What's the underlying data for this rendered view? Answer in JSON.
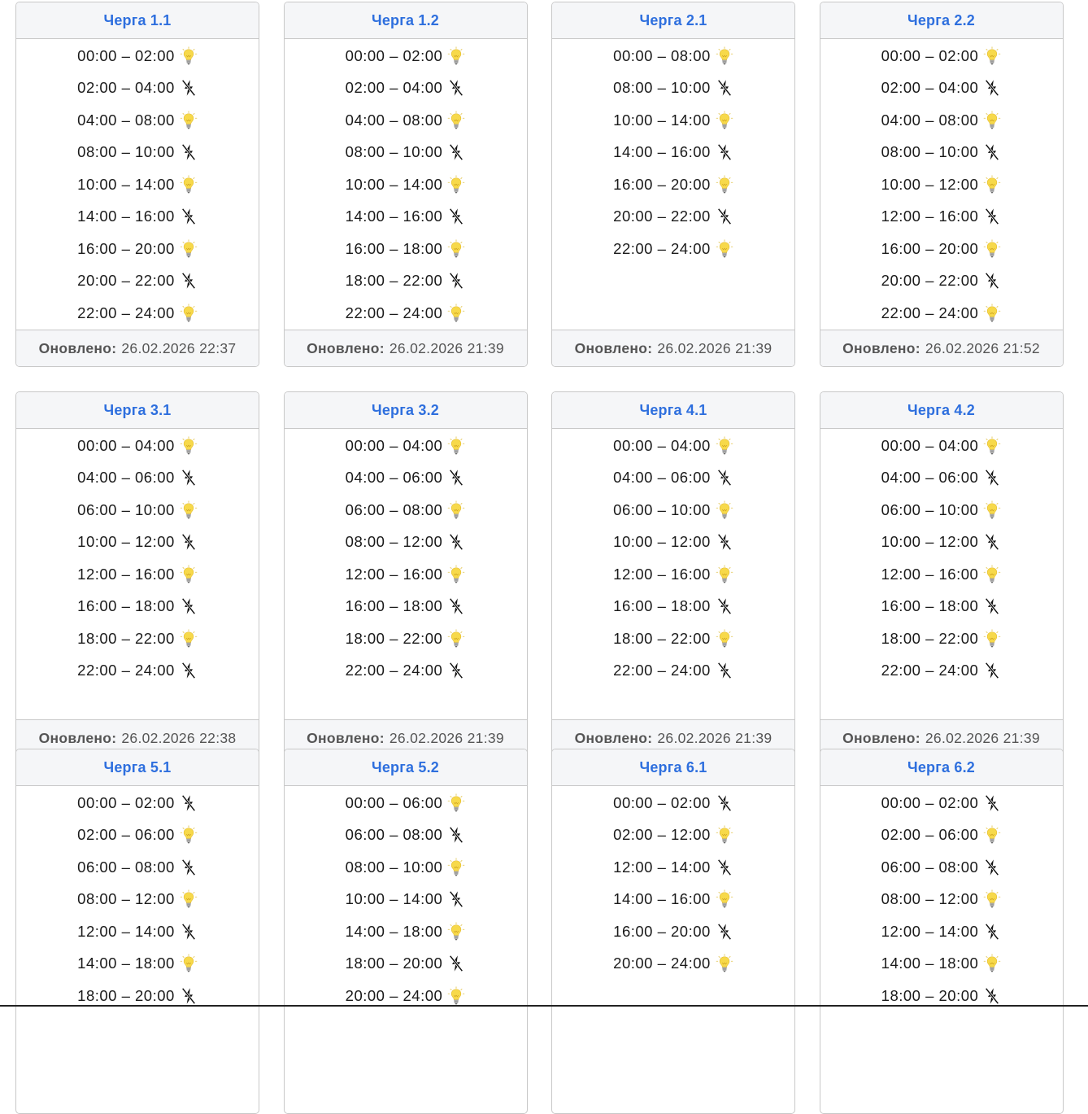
{
  "updated_label": "Оновлено:",
  "queues": [
    {
      "title": "Черга 1.1",
      "updated": "26.02.2026 22:37",
      "slots": [
        {
          "time": "00:00 – 02:00",
          "state": "on"
        },
        {
          "time": "02:00 – 04:00",
          "state": "off"
        },
        {
          "time": "04:00 – 08:00",
          "state": "on"
        },
        {
          "time": "08:00 – 10:00",
          "state": "off"
        },
        {
          "time": "10:00 – 14:00",
          "state": "on"
        },
        {
          "time": "14:00 – 16:00",
          "state": "off"
        },
        {
          "time": "16:00 – 20:00",
          "state": "on"
        },
        {
          "time": "20:00 – 22:00",
          "state": "off"
        },
        {
          "time": "22:00 – 24:00",
          "state": "on"
        }
      ]
    },
    {
      "title": "Черга 1.2",
      "updated": "26.02.2026 21:39",
      "slots": [
        {
          "time": "00:00 – 02:00",
          "state": "on"
        },
        {
          "time": "02:00 – 04:00",
          "state": "off"
        },
        {
          "time": "04:00 – 08:00",
          "state": "on"
        },
        {
          "time": "08:00 – 10:00",
          "state": "off"
        },
        {
          "time": "10:00 – 14:00",
          "state": "on"
        },
        {
          "time": "14:00 – 16:00",
          "state": "off"
        },
        {
          "time": "16:00 – 18:00",
          "state": "on"
        },
        {
          "time": "18:00 – 22:00",
          "state": "off"
        },
        {
          "time": "22:00 – 24:00",
          "state": "on"
        }
      ]
    },
    {
      "title": "Черга 2.1",
      "updated": "26.02.2026 21:39",
      "slots": [
        {
          "time": "00:00 – 08:00",
          "state": "on"
        },
        {
          "time": "08:00 – 10:00",
          "state": "off"
        },
        {
          "time": "10:00 – 14:00",
          "state": "on"
        },
        {
          "time": "14:00 – 16:00",
          "state": "off"
        },
        {
          "time": "16:00 – 20:00",
          "state": "on"
        },
        {
          "time": "20:00 – 22:00",
          "state": "off"
        },
        {
          "time": "22:00 – 24:00",
          "state": "on"
        }
      ]
    },
    {
      "title": "Черга 2.2",
      "updated": "26.02.2026 21:52",
      "slots": [
        {
          "time": "00:00 – 02:00",
          "state": "on"
        },
        {
          "time": "02:00 – 04:00",
          "state": "off"
        },
        {
          "time": "04:00 – 08:00",
          "state": "on"
        },
        {
          "time": "08:00 – 10:00",
          "state": "off"
        },
        {
          "time": "10:00 – 12:00",
          "state": "on"
        },
        {
          "time": "12:00 – 16:00",
          "state": "off"
        },
        {
          "time": "16:00 – 20:00",
          "state": "on"
        },
        {
          "time": "20:00 – 22:00",
          "state": "off"
        },
        {
          "time": "22:00 – 24:00",
          "state": "on"
        }
      ]
    },
    {
      "title": "Черга 3.1",
      "updated": "26.02.2026 22:38",
      "slots": [
        {
          "time": "00:00 – 04:00",
          "state": "on"
        },
        {
          "time": "04:00 – 06:00",
          "state": "off"
        },
        {
          "time": "06:00 – 10:00",
          "state": "on"
        },
        {
          "time": "10:00 – 12:00",
          "state": "off"
        },
        {
          "time": "12:00 – 16:00",
          "state": "on"
        },
        {
          "time": "16:00 – 18:00",
          "state": "off"
        },
        {
          "time": "18:00 – 22:00",
          "state": "on"
        },
        {
          "time": "22:00 – 24:00",
          "state": "off"
        }
      ]
    },
    {
      "title": "Черга 3.2",
      "updated": "26.02.2026 21:39",
      "slots": [
        {
          "time": "00:00 – 04:00",
          "state": "on"
        },
        {
          "time": "04:00 – 06:00",
          "state": "off"
        },
        {
          "time": "06:00 – 08:00",
          "state": "on"
        },
        {
          "time": "08:00 – 12:00",
          "state": "off"
        },
        {
          "time": "12:00 – 16:00",
          "state": "on"
        },
        {
          "time": "16:00 – 18:00",
          "state": "off"
        },
        {
          "time": "18:00 – 22:00",
          "state": "on"
        },
        {
          "time": "22:00 – 24:00",
          "state": "off"
        }
      ]
    },
    {
      "title": "Черга 4.1",
      "updated": "26.02.2026 21:39",
      "slots": [
        {
          "time": "00:00 – 04:00",
          "state": "on"
        },
        {
          "time": "04:00 – 06:00",
          "state": "off"
        },
        {
          "time": "06:00 – 10:00",
          "state": "on"
        },
        {
          "time": "10:00 – 12:00",
          "state": "off"
        },
        {
          "time": "12:00 – 16:00",
          "state": "on"
        },
        {
          "time": "16:00 – 18:00",
          "state": "off"
        },
        {
          "time": "18:00 – 22:00",
          "state": "on"
        },
        {
          "time": "22:00 – 24:00",
          "state": "off"
        }
      ]
    },
    {
      "title": "Черга 4.2",
      "updated": "26.02.2026 21:39",
      "slots": [
        {
          "time": "00:00 – 04:00",
          "state": "on"
        },
        {
          "time": "04:00 – 06:00",
          "state": "off"
        },
        {
          "time": "06:00 – 10:00",
          "state": "on"
        },
        {
          "time": "10:00 – 12:00",
          "state": "off"
        },
        {
          "time": "12:00 – 16:00",
          "state": "on"
        },
        {
          "time": "16:00 – 18:00",
          "state": "off"
        },
        {
          "time": "18:00 – 22:00",
          "state": "on"
        },
        {
          "time": "22:00 – 24:00",
          "state": "off"
        }
      ]
    },
    {
      "title": "Черга 5.1",
      "updated": "",
      "slots": [
        {
          "time": "00:00 – 02:00",
          "state": "off"
        },
        {
          "time": "02:00 – 06:00",
          "state": "on"
        },
        {
          "time": "06:00 – 08:00",
          "state": "off"
        },
        {
          "time": "08:00 – 12:00",
          "state": "on"
        },
        {
          "time": "12:00 – 14:00",
          "state": "off"
        },
        {
          "time": "14:00 – 18:00",
          "state": "on"
        },
        {
          "time": "18:00 – 20:00",
          "state": "off"
        }
      ]
    },
    {
      "title": "Черга 5.2",
      "updated": "",
      "slots": [
        {
          "time": "00:00 – 06:00",
          "state": "on"
        },
        {
          "time": "06:00 – 08:00",
          "state": "off"
        },
        {
          "time": "08:00 – 10:00",
          "state": "on"
        },
        {
          "time": "10:00 – 14:00",
          "state": "off"
        },
        {
          "time": "14:00 – 18:00",
          "state": "on"
        },
        {
          "time": "18:00 – 20:00",
          "state": "off"
        },
        {
          "time": "20:00 – 24:00",
          "state": "on"
        }
      ]
    },
    {
      "title": "Черга 6.1",
      "updated": "",
      "slots": [
        {
          "time": "00:00 – 02:00",
          "state": "off"
        },
        {
          "time": "02:00 – 12:00",
          "state": "on"
        },
        {
          "time": "12:00 – 14:00",
          "state": "off"
        },
        {
          "time": "14:00 – 16:00",
          "state": "on"
        },
        {
          "time": "16:00 – 20:00",
          "state": "off"
        },
        {
          "time": "20:00 – 24:00",
          "state": "on"
        }
      ]
    },
    {
      "title": "Черга 6.2",
      "updated": "",
      "slots": [
        {
          "time": "00:00 – 02:00",
          "state": "off"
        },
        {
          "time": "02:00 – 06:00",
          "state": "on"
        },
        {
          "time": "06:00 – 08:00",
          "state": "off"
        },
        {
          "time": "08:00 – 12:00",
          "state": "on"
        },
        {
          "time": "12:00 – 14:00",
          "state": "off"
        },
        {
          "time": "14:00 – 18:00",
          "state": "on"
        },
        {
          "time": "18:00 – 20:00",
          "state": "off"
        }
      ]
    }
  ]
}
